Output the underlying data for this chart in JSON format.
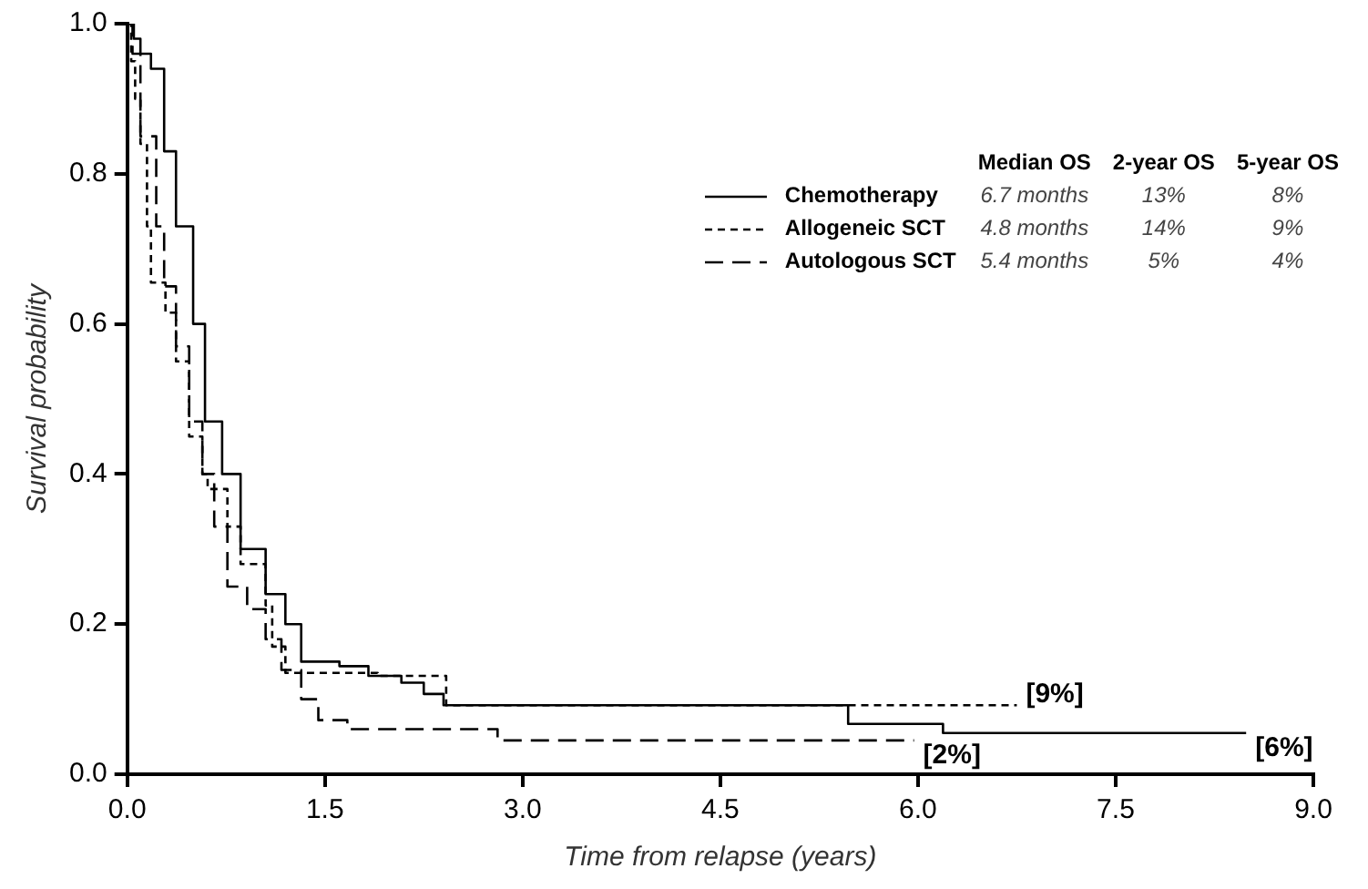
{
  "chart_data": {
    "type": "step",
    "xlabel": "Time from relapse (years)",
    "ylabel": "Survival probability",
    "xlim": [
      0,
      9
    ],
    "ylim": [
      0,
      1
    ],
    "xticks": [
      {
        "value": 0,
        "label": "0.0"
      },
      {
        "value": 1.5,
        "label": "1.5"
      },
      {
        "value": 3,
        "label": "3.0"
      },
      {
        "value": 4.5,
        "label": "4.5"
      },
      {
        "value": 6,
        "label": "6.0"
      },
      {
        "value": 7.5,
        "label": "7.5"
      },
      {
        "value": 9,
        "label": "9.0"
      }
    ],
    "yticks": [
      {
        "value": 0,
        "label": "0.0"
      },
      {
        "value": 0.2,
        "label": "0.2"
      },
      {
        "value": 0.4,
        "label": "0.4"
      },
      {
        "value": 0.6,
        "label": "0.6"
      },
      {
        "value": 0.8,
        "label": "0.8"
      },
      {
        "value": 1,
        "label": "1.0"
      }
    ],
    "grid": false,
    "legend": "top right",
    "marker": "none",
    "series": [
      {
        "name": "Chemotherapy",
        "color": "#000000",
        "line_style": "solid",
        "x": [
          0,
          0.05,
          0.1,
          0.18,
          0.28,
          0.37,
          0.5,
          0.59,
          0.72,
          0.86,
          1.05,
          1.2,
          1.32,
          1.61,
          1.83,
          2.08,
          2.25,
          2.4,
          5.47,
          6.19,
          8.49
        ],
        "values": [
          1.0,
          0.98,
          0.96,
          0.94,
          0.83,
          0.73,
          0.6,
          0.47,
          0.4,
          0.3,
          0.24,
          0.2,
          0.15,
          0.144,
          0.131,
          0.122,
          0.107,
          0.092,
          0.067,
          0.055,
          0.055
        ]
      },
      {
        "name": "Allogeneic SCT",
        "color": "#000000",
        "line_style": "dashed",
        "x": [
          0,
          0.03,
          0.06,
          0.1,
          0.15,
          0.18,
          0.29,
          0.37,
          0.47,
          0.57,
          0.61,
          0.76,
          0.86,
          1.05,
          1.1,
          1.2,
          1.9,
          2.42,
          6.75
        ],
        "values": [
          1.0,
          0.95,
          0.9,
          0.84,
          0.73,
          0.655,
          0.615,
          0.55,
          0.45,
          0.4,
          0.38,
          0.33,
          0.28,
          0.225,
          0.17,
          0.135,
          0.131,
          0.092,
          0.092
        ]
      },
      {
        "name": "Autologous SCT",
        "color": "#000000",
        "line_style": "dashed",
        "x": [
          0,
          0.04,
          0.1,
          0.22,
          0.28,
          0.37,
          0.47,
          0.57,
          0.66,
          0.76,
          0.91,
          1.05,
          1.17,
          1.32,
          1.45,
          1.67,
          2.81,
          5.97
        ],
        "values": [
          1.0,
          0.96,
          0.85,
          0.73,
          0.65,
          0.57,
          0.47,
          0.4,
          0.33,
          0.25,
          0.22,
          0.18,
          0.139,
          0.1,
          0.072,
          0.06,
          0.045,
          0.045
        ]
      }
    ],
    "annotations": [
      "Median OS",
      "2-year OS",
      "5-year OS",
      "6.7 months",
      "13%",
      "8%",
      "4.8 months",
      "14%",
      "9%",
      "5.4 months",
      "5%",
      "4%",
      {
        "text": "[9%]",
        "x": 6.75,
        "y": 0.092
      },
      {
        "text": "[6%]",
        "x": 8.49,
        "y": 0.055
      },
      {
        "text": "[2%]",
        "x": 5.97,
        "y": 0.045
      }
    ]
  }
}
